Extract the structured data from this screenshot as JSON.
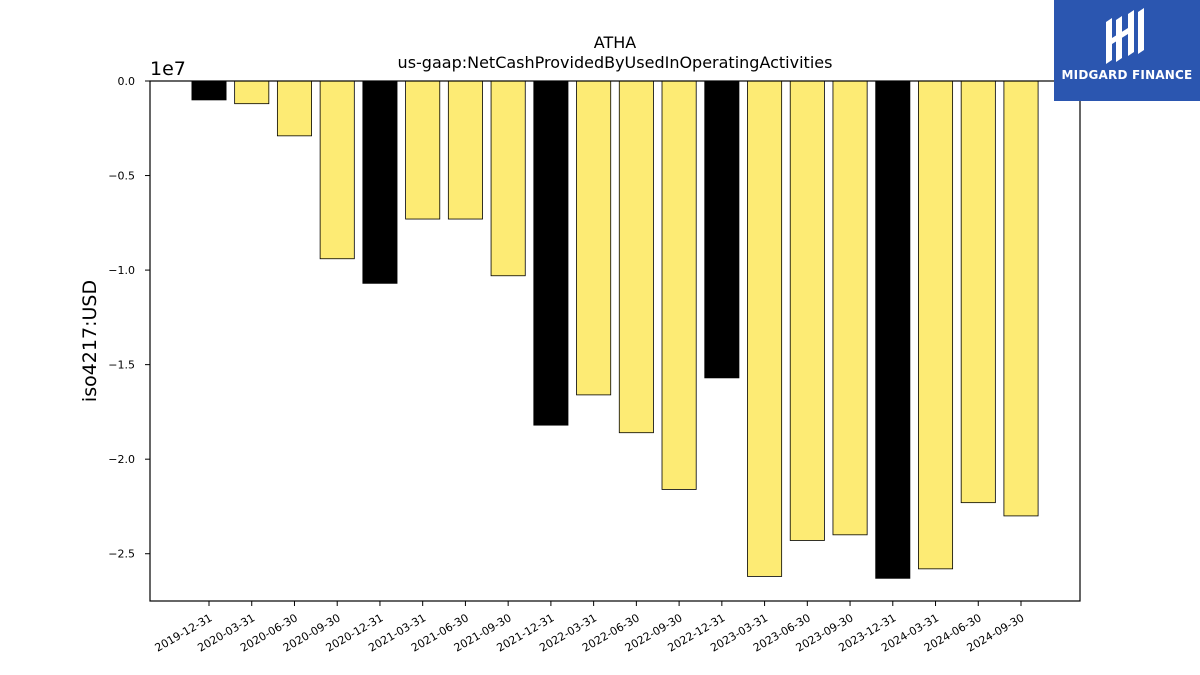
{
  "brand": {
    "name": "MIDGARD FINANCE",
    "background_color": "#2b56b0",
    "icon": "midgard-logo-icon"
  },
  "chart_data": {
    "type": "bar",
    "title": "ATHA",
    "subtitle": "us-gaap:NetCashProvidedByUsedInOperatingActivities",
    "xlabel": "",
    "ylabel": "iso4217:USD",
    "y_scale_label": "1e7",
    "ylim": [
      -2.75,
      0.0
    ],
    "y_ticks": [
      0.0,
      -0.5,
      -1.0,
      -1.5,
      -2.0,
      -2.5
    ],
    "y_tick_labels": [
      "0.0",
      "−0.5",
      "−1.0",
      "−1.5",
      "−2.0",
      "−2.5"
    ],
    "grid": false,
    "categories": [
      "2019-12-31",
      "2020-03-31",
      "2020-06-30",
      "2020-09-30",
      "2020-12-31",
      "2021-03-31",
      "2021-06-30",
      "2021-09-30",
      "2021-12-31",
      "2022-03-31",
      "2022-06-30",
      "2022-09-30",
      "2022-12-31",
      "2023-03-31",
      "2023-06-30",
      "2023-09-30",
      "2023-12-31",
      "2024-03-31",
      "2024-06-30",
      "2024-09-30"
    ],
    "values": [
      -0.1,
      -0.12,
      -0.29,
      -0.94,
      -1.07,
      -0.73,
      -0.73,
      -1.03,
      -1.82,
      -1.66,
      -1.86,
      -2.16,
      -1.57,
      -2.62,
      -2.43,
      -2.4,
      -2.63,
      -2.58,
      -2.23,
      -2.3
    ],
    "colors": {
      "annual": "#000000",
      "quarterly": "#fdeb74",
      "edge": "#000000"
    },
    "bar_color_keys": [
      "annual",
      "quarterly",
      "quarterly",
      "quarterly",
      "annual",
      "quarterly",
      "quarterly",
      "quarterly",
      "annual",
      "quarterly",
      "quarterly",
      "quarterly",
      "annual",
      "quarterly",
      "quarterly",
      "quarterly",
      "annual",
      "quarterly",
      "quarterly",
      "quarterly"
    ]
  }
}
